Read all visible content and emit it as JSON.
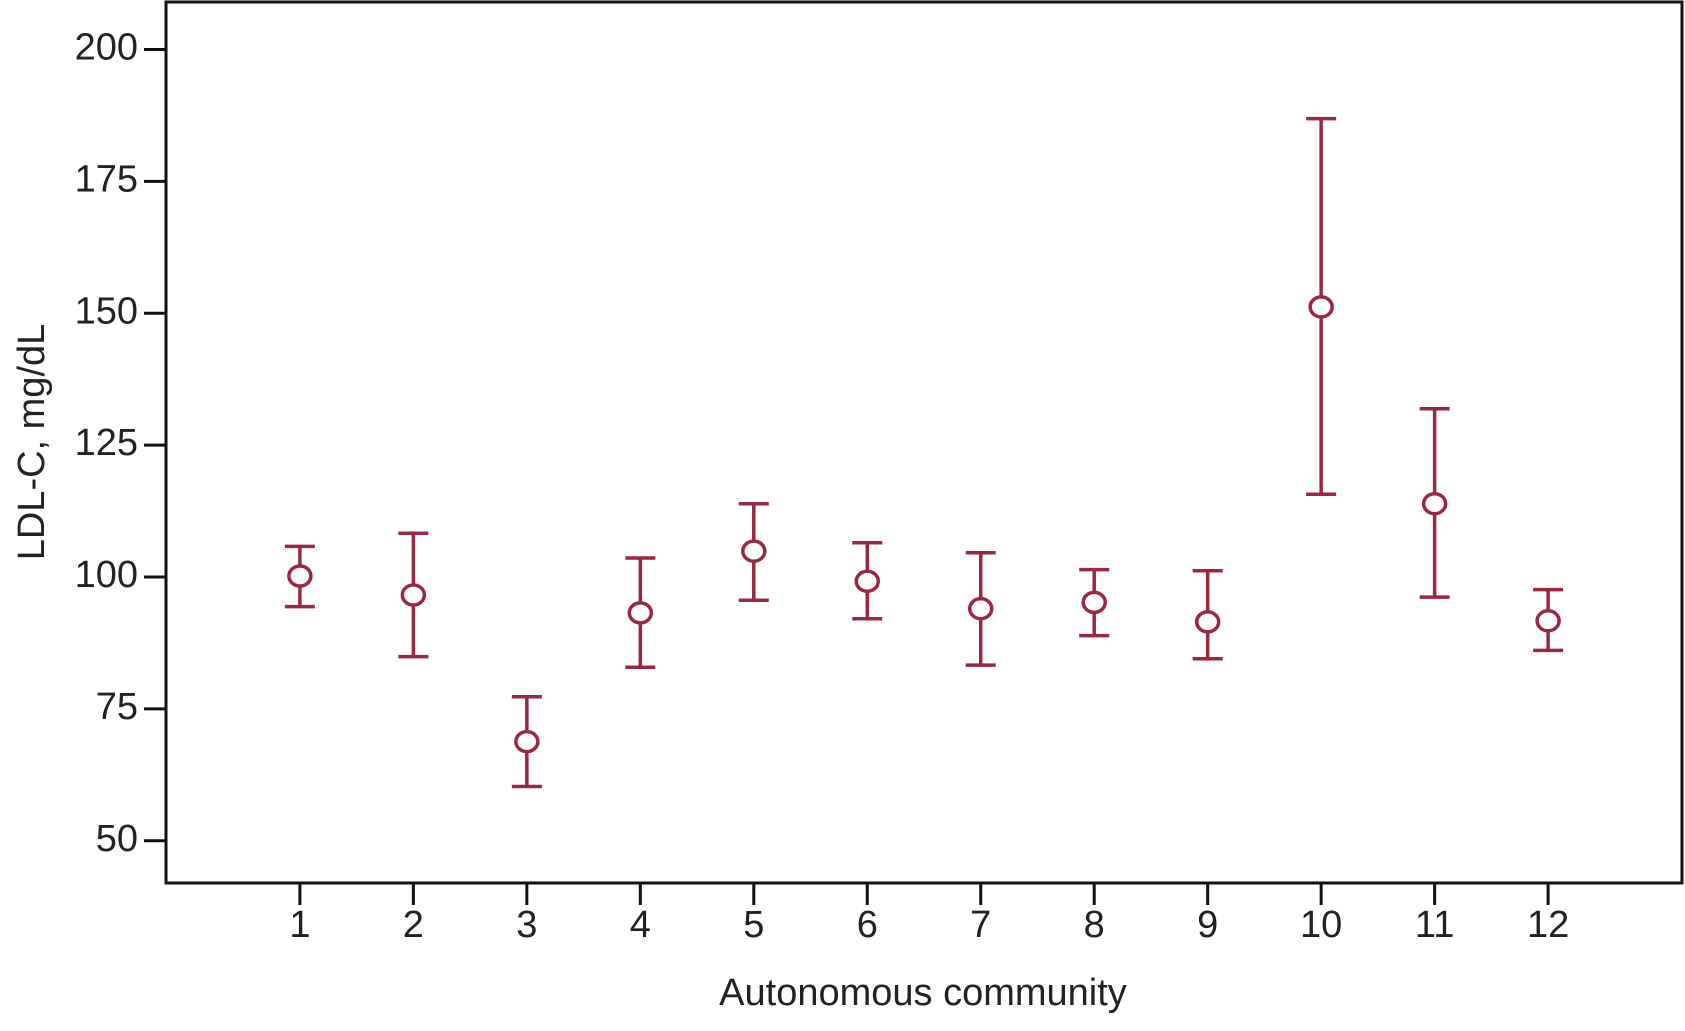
{
  "chart_data": {
    "type": "errorbar",
    "x_label": "Autonomous community",
    "y_label": "LDL-C, mg/dL",
    "categories": [
      "1",
      "2",
      "3",
      "4",
      "5",
      "6",
      "7",
      "8",
      "9",
      "10",
      "11",
      "12"
    ],
    "series": [
      {
        "color": "#9b2743",
        "values": [
          100.2,
          96.6,
          68.8,
          93.2,
          104.9,
          99.2,
          94.0,
          95.2,
          91.5,
          151.2,
          113.9,
          91.7
        ],
        "lower": [
          94.4,
          84.9,
          60.3,
          82.9,
          95.6,
          92.1,
          83.3,
          88.9,
          84.5,
          115.7,
          96.2,
          86.1
        ],
        "upper": [
          105.8,
          108.3,
          77.3,
          103.6,
          113.9,
          106.5,
          104.6,
          101.4,
          101.2,
          186.9,
          131.9,
          97.6
        ]
      }
    ],
    "ylim": [
      42,
      209
    ],
    "yticks": [
      50,
      75,
      100,
      125,
      150,
      175,
      200
    ],
    "grid": false
  }
}
